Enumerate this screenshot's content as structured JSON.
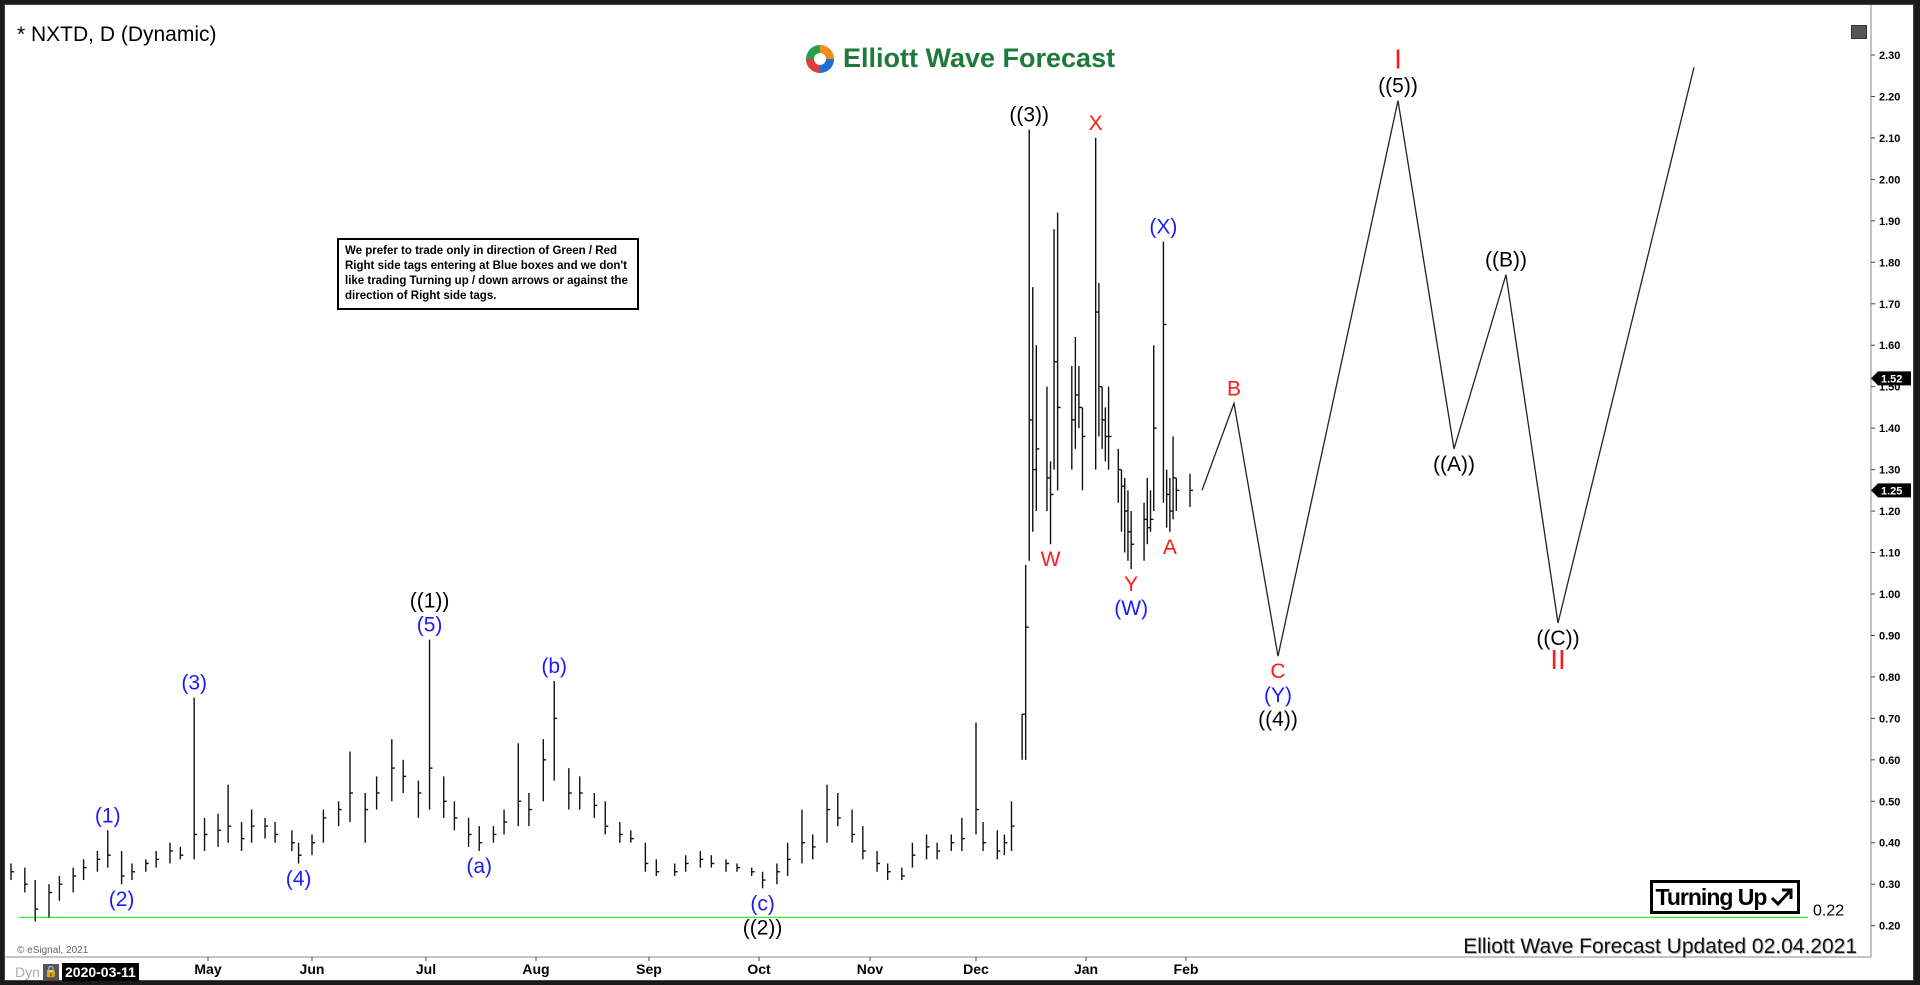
{
  "header": {
    "title": "* NXTD, D (Dynamic)"
  },
  "logo": {
    "text": "Elliott Wave Forecast"
  },
  "note": {
    "text": "We prefer to trade only in direction of Green / Red Right side tags entering at Blue boxes and we don't like trading Turning up / down arrows or against the direction of Right side tags."
  },
  "badge": {
    "label": "Turning Up",
    "icon": "arrow-up-right-icon"
  },
  "footer": {
    "text": "Elliott Wave Forecast Updated 02.04.2021",
    "copyright": "© eSignal, 2021"
  },
  "axis_bar": {
    "mode": "Dyn",
    "start_date": "2020-03-11"
  },
  "colors": {
    "blue": "#1a1aff",
    "red": "#ff1a1a",
    "black": "#000000",
    "support_line": "#33ee33"
  },
  "chart_data": {
    "type": "bar",
    "symbol": "NXTD",
    "interval": "D",
    "y_ticks": [
      "0.20",
      "0.30",
      "0.40",
      "0.50",
      "0.60",
      "0.70",
      "0.80",
      "0.90",
      "1.00",
      "1.10",
      "1.20",
      "1.30",
      "1.40",
      "1.50",
      "1.60",
      "1.70",
      "1.80",
      "1.90",
      "2.00",
      "2.10",
      "2.20",
      "2.30"
    ],
    "ylim": [
      0.2,
      2.3
    ],
    "x_ticks": [
      {
        "label": "May",
        "date": "2020-05-01"
      },
      {
        "label": "Jun",
        "date": "2020-06-01"
      },
      {
        "label": "Jul",
        "date": "2020-07-01"
      },
      {
        "label": "Aug",
        "date": "2020-08-01"
      },
      {
        "label": "Sep",
        "date": "2020-09-01"
      },
      {
        "label": "Oct",
        "date": "2020-10-01"
      },
      {
        "label": "Nov",
        "date": "2020-11-01"
      },
      {
        "label": "Dec",
        "date": "2020-12-01"
      },
      {
        "label": "Jan",
        "date": "2021-01-01"
      },
      {
        "label": "Feb",
        "date": "2021-02-01"
      }
    ],
    "price_tags": [
      {
        "value": 1.52,
        "label": "1.52"
      },
      {
        "value": 1.25,
        "label": "1.25"
      }
    ],
    "support_line": {
      "value": 0.22,
      "label": "0.22"
    },
    "bars_fields": [
      "date",
      "high",
      "low",
      "close"
    ],
    "bars": [
      [
        "2020-03-05",
        0.35,
        0.31,
        0.33
      ],
      [
        "2020-03-09",
        0.34,
        0.28,
        0.3
      ],
      [
        "2020-03-12",
        0.31,
        0.21,
        0.24
      ],
      [
        "2020-03-16",
        0.3,
        0.22,
        0.28
      ],
      [
        "2020-03-19",
        0.32,
        0.26,
        0.3
      ],
      [
        "2020-03-23",
        0.34,
        0.28,
        0.32
      ],
      [
        "2020-03-26",
        0.36,
        0.31,
        0.34
      ],
      [
        "2020-03-30",
        0.38,
        0.33,
        0.36
      ],
      [
        "2020-04-02",
        0.43,
        0.34,
        0.37
      ],
      [
        "2020-04-06",
        0.38,
        0.3,
        0.32
      ],
      [
        "2020-04-09",
        0.35,
        0.31,
        0.33
      ],
      [
        "2020-04-13",
        0.36,
        0.33,
        0.35
      ],
      [
        "2020-04-16",
        0.38,
        0.34,
        0.36
      ],
      [
        "2020-04-20",
        0.4,
        0.35,
        0.38
      ],
      [
        "2020-04-23",
        0.39,
        0.36,
        0.37
      ],
      [
        "2020-04-27",
        0.75,
        0.36,
        0.42
      ],
      [
        "2020-04-30",
        0.46,
        0.38,
        0.42
      ],
      [
        "2020-05-04",
        0.47,
        0.39,
        0.43
      ],
      [
        "2020-05-07",
        0.54,
        0.4,
        0.44
      ],
      [
        "2020-05-11",
        0.45,
        0.38,
        0.41
      ],
      [
        "2020-05-14",
        0.48,
        0.4,
        0.44
      ],
      [
        "2020-05-18",
        0.46,
        0.41,
        0.44
      ],
      [
        "2020-05-21",
        0.45,
        0.4,
        0.42
      ],
      [
        "2020-05-26",
        0.43,
        0.38,
        0.4
      ],
      [
        "2020-05-28",
        0.4,
        0.35,
        0.37
      ],
      [
        "2020-06-01",
        0.42,
        0.37,
        0.4
      ],
      [
        "2020-06-04",
        0.48,
        0.4,
        0.46
      ],
      [
        "2020-06-08",
        0.5,
        0.44,
        0.48
      ],
      [
        "2020-06-11",
        0.62,
        0.45,
        0.52
      ],
      [
        "2020-06-15",
        0.52,
        0.4,
        0.48
      ],
      [
        "2020-06-18",
        0.56,
        0.48,
        0.52
      ],
      [
        "2020-06-22",
        0.65,
        0.5,
        0.58
      ],
      [
        "2020-06-25",
        0.6,
        0.52,
        0.56
      ],
      [
        "2020-06-29",
        0.55,
        0.46,
        0.52
      ],
      [
        "2020-07-02",
        0.89,
        0.48,
        0.58
      ],
      [
        "2020-07-06",
        0.56,
        0.46,
        0.5
      ],
      [
        "2020-07-09",
        0.5,
        0.43,
        0.46
      ],
      [
        "2020-07-13",
        0.46,
        0.39,
        0.42
      ],
      [
        "2020-07-16",
        0.44,
        0.38,
        0.4
      ],
      [
        "2020-07-20",
        0.44,
        0.4,
        0.42
      ],
      [
        "2020-07-23",
        0.48,
        0.42,
        0.45
      ],
      [
        "2020-07-27",
        0.64,
        0.44,
        0.5
      ],
      [
        "2020-07-30",
        0.52,
        0.44,
        0.48
      ],
      [
        "2020-08-03",
        0.65,
        0.5,
        0.6
      ],
      [
        "2020-08-06",
        0.79,
        0.55,
        0.7
      ],
      [
        "2020-08-10",
        0.58,
        0.48,
        0.52
      ],
      [
        "2020-08-13",
        0.56,
        0.48,
        0.52
      ],
      [
        "2020-08-17",
        0.52,
        0.46,
        0.49
      ],
      [
        "2020-08-20",
        0.5,
        0.42,
        0.44
      ],
      [
        "2020-08-24",
        0.45,
        0.4,
        0.42
      ],
      [
        "2020-08-27",
        0.43,
        0.4,
        0.41
      ],
      [
        "2020-08-31",
        0.4,
        0.33,
        0.35
      ],
      [
        "2020-09-03",
        0.36,
        0.32,
        0.33
      ],
      [
        "2020-09-08",
        0.35,
        0.32,
        0.33
      ],
      [
        "2020-09-11",
        0.37,
        0.33,
        0.35
      ],
      [
        "2020-09-15",
        0.38,
        0.34,
        0.36
      ],
      [
        "2020-09-18",
        0.37,
        0.34,
        0.35
      ],
      [
        "2020-09-22",
        0.36,
        0.33,
        0.35
      ],
      [
        "2020-09-25",
        0.35,
        0.33,
        0.34
      ],
      [
        "2020-09-29",
        0.34,
        0.32,
        0.33
      ],
      [
        "2020-10-02",
        0.33,
        0.29,
        0.31
      ],
      [
        "2020-10-06",
        0.35,
        0.3,
        0.33
      ],
      [
        "2020-10-09",
        0.4,
        0.32,
        0.36
      ],
      [
        "2020-10-13",
        0.48,
        0.35,
        0.4
      ],
      [
        "2020-10-16",
        0.42,
        0.36,
        0.39
      ],
      [
        "2020-10-20",
        0.54,
        0.4,
        0.48
      ],
      [
        "2020-10-23",
        0.52,
        0.44,
        0.46
      ],
      [
        "2020-10-27",
        0.48,
        0.4,
        0.42
      ],
      [
        "2020-10-30",
        0.44,
        0.36,
        0.38
      ],
      [
        "2020-11-03",
        0.38,
        0.33,
        0.35
      ],
      [
        "2020-11-06",
        0.35,
        0.31,
        0.33
      ],
      [
        "2020-11-10",
        0.34,
        0.31,
        0.32
      ],
      [
        "2020-11-13",
        0.4,
        0.34,
        0.37
      ],
      [
        "2020-11-17",
        0.42,
        0.36,
        0.39
      ],
      [
        "2020-11-20",
        0.4,
        0.36,
        0.38
      ],
      [
        "2020-11-24",
        0.42,
        0.38,
        0.4
      ],
      [
        "2020-11-27",
        0.46,
        0.38,
        0.41
      ],
      [
        "2020-12-01",
        0.69,
        0.42,
        0.48
      ],
      [
        "2020-12-03",
        0.45,
        0.38,
        0.4
      ],
      [
        "2020-12-07",
        0.43,
        0.36,
        0.38
      ],
      [
        "2020-12-09",
        0.42,
        0.37,
        0.4
      ],
      [
        "2020-12-11",
        0.5,
        0.38,
        0.44
      ],
      [
        "2020-12-14",
        0.71,
        0.6,
        0.71
      ],
      [
        "2020-12-15",
        1.07,
        0.6,
        0.92
      ],
      [
        "2020-12-16",
        2.12,
        1.08,
        1.42
      ],
      [
        "2020-12-17",
        1.74,
        1.15,
        1.3
      ],
      [
        "2020-12-18",
        1.6,
        1.2,
        1.35
      ],
      [
        "2020-12-21",
        1.5,
        1.2,
        1.28
      ],
      [
        "2020-12-22",
        1.32,
        1.12,
        1.24
      ],
      [
        "2020-12-23",
        1.88,
        1.3,
        1.56
      ],
      [
        "2020-12-24",
        1.92,
        1.25,
        1.45
      ],
      [
        "2020-12-28",
        1.55,
        1.3,
        1.42
      ],
      [
        "2020-12-29",
        1.62,
        1.35,
        1.48
      ],
      [
        "2020-12-30",
        1.55,
        1.4,
        1.45
      ],
      [
        "2020-12-31",
        1.45,
        1.25,
        1.38
      ],
      [
        "2021-01-04",
        2.1,
        1.3,
        1.68
      ],
      [
        "2021-01-05",
        1.75,
        1.38,
        1.5
      ],
      [
        "2021-01-06",
        1.5,
        1.35,
        1.42
      ],
      [
        "2021-01-07",
        1.45,
        1.32,
        1.38
      ],
      [
        "2021-01-08",
        1.5,
        1.3,
        1.38
      ],
      [
        "2021-01-11",
        1.35,
        1.22,
        1.3
      ],
      [
        "2021-01-12",
        1.3,
        1.15,
        1.26
      ],
      [
        "2021-01-13",
        1.28,
        1.1,
        1.2
      ],
      [
        "2021-01-14",
        1.25,
        1.08,
        1.15
      ],
      [
        "2021-01-15",
        1.2,
        1.06,
        1.12
      ],
      [
        "2021-01-19",
        1.22,
        1.08,
        1.18
      ],
      [
        "2021-01-20",
        1.28,
        1.12,
        1.16
      ],
      [
        "2021-01-21",
        1.25,
        1.15,
        1.18
      ],
      [
        "2021-01-22",
        1.6,
        1.2,
        1.4
      ],
      [
        "2021-01-25",
        1.85,
        1.22,
        1.65
      ],
      [
        "2021-01-26",
        1.3,
        1.16,
        1.24
      ],
      [
        "2021-01-27",
        1.28,
        1.15,
        1.2
      ],
      [
        "2021-01-28",
        1.38,
        1.18,
        1.28
      ],
      [
        "2021-01-29",
        1.28,
        1.2,
        1.25
      ],
      [
        "2021-02-02",
        1.29,
        1.21,
        1.25
      ]
    ],
    "projection": [
      [
        "2021-02-05",
        1.25
      ],
      [
        "2021-02-13",
        1.46
      ],
      [
        "2021-02-24",
        0.85
      ],
      [
        "2021-03-26",
        2.19
      ],
      [
        "2021-04-09",
        1.35
      ],
      [
        "2021-04-22",
        1.77
      ],
      [
        "2021-05-05",
        0.93
      ],
      [
        "2021-06-08",
        2.27
      ]
    ],
    "annotations": [
      {
        "date": "2020-04-02",
        "value": 0.43,
        "pos": "above",
        "lines": [
          {
            "t": "(1)",
            "c": "blue"
          }
        ]
      },
      {
        "date": "2020-04-06",
        "value": 0.3,
        "pos": "below",
        "lines": [
          {
            "t": "(2)",
            "c": "blue"
          }
        ]
      },
      {
        "date": "2020-04-27",
        "value": 0.75,
        "pos": "above",
        "lines": [
          {
            "t": "(3)",
            "c": "blue"
          }
        ]
      },
      {
        "date": "2020-05-28",
        "value": 0.35,
        "pos": "below",
        "lines": [
          {
            "t": "(4)",
            "c": "blue"
          }
        ]
      },
      {
        "date": "2020-07-02",
        "value": 0.89,
        "pos": "above",
        "lines": [
          {
            "t": "((1))",
            "c": "black"
          },
          {
            "t": "(5)",
            "c": "blue"
          }
        ]
      },
      {
        "date": "2020-07-16",
        "value": 0.38,
        "pos": "below",
        "lines": [
          {
            "t": "(a)",
            "c": "blue"
          }
        ]
      },
      {
        "date": "2020-08-06",
        "value": 0.79,
        "pos": "above",
        "lines": [
          {
            "t": "(b)",
            "c": "blue"
          }
        ]
      },
      {
        "date": "2020-10-02",
        "value": 0.29,
        "pos": "below",
        "lines": [
          {
            "t": "(c)",
            "c": "blue"
          },
          {
            "t": "((2))",
            "c": "black"
          }
        ]
      },
      {
        "date": "2020-12-16",
        "value": 2.12,
        "pos": "above",
        "lines": [
          {
            "t": "((3))",
            "c": "black"
          }
        ]
      },
      {
        "date": "2020-12-22",
        "value": 1.12,
        "pos": "below",
        "lines": [
          {
            "t": "W",
            "c": "red"
          }
        ]
      },
      {
        "date": "2021-01-04",
        "value": 2.1,
        "pos": "above",
        "lines": [
          {
            "t": "X",
            "c": "red"
          }
        ]
      },
      {
        "date": "2021-01-15",
        "value": 1.06,
        "pos": "below",
        "lines": [
          {
            "t": "Y",
            "c": "red"
          },
          {
            "t": "(W)",
            "c": "blue"
          }
        ]
      },
      {
        "date": "2021-01-25",
        "value": 1.85,
        "pos": "above",
        "lines": [
          {
            "t": "(X)",
            "c": "blue"
          }
        ]
      },
      {
        "date": "2021-01-27",
        "value": 1.15,
        "pos": "below",
        "lines": [
          {
            "t": "A",
            "c": "red"
          }
        ]
      },
      {
        "date": "2021-02-13",
        "value": 1.46,
        "pos": "above",
        "lines": [
          {
            "t": "B",
            "c": "red"
          }
        ]
      },
      {
        "date": "2021-02-24",
        "value": 0.85,
        "pos": "below",
        "lines": [
          {
            "t": "C",
            "c": "red"
          },
          {
            "t": "(Y)",
            "c": "blue"
          },
          {
            "t": "((4))",
            "c": "black"
          }
        ]
      },
      {
        "date": "2021-03-26",
        "value": 2.19,
        "pos": "above",
        "lines": [
          {
            "t": "I",
            "c": "red"
          },
          {
            "t": "((5))",
            "c": "black"
          }
        ]
      },
      {
        "date": "2021-04-09",
        "value": 1.35,
        "pos": "below",
        "lines": [
          {
            "t": "((A))",
            "c": "black"
          }
        ]
      },
      {
        "date": "2021-04-22",
        "value": 1.77,
        "pos": "above",
        "lines": [
          {
            "t": "((B))",
            "c": "black"
          }
        ]
      },
      {
        "date": "2021-05-05",
        "value": 0.93,
        "pos": "below",
        "lines": [
          {
            "t": "((C))",
            "c": "black"
          },
          {
            "t": "II",
            "c": "red"
          }
        ]
      }
    ]
  }
}
